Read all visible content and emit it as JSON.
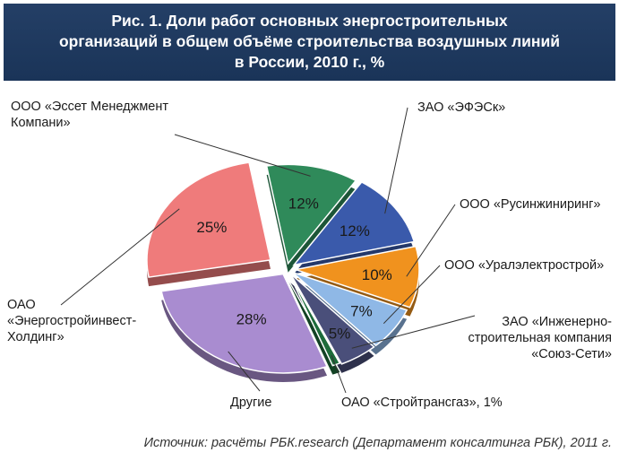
{
  "title_lines": [
    "Рис. 1. Доли работ основных энергостроительных",
    "организаций в общем объёме строительства воздушных линий",
    "в России, 2010 г., %"
  ],
  "source": "Источник: расчёты РБК.research (Департамент консалтинга РБК), 2011 г.",
  "colors": {
    "title_bg": "#243f66",
    "slices": [
      "#2f8a5a",
      "#3a5aab",
      "#f0921e",
      "#8fb8e6",
      "#4a4f7a",
      "#1d6b3a",
      "#a98cd0",
      "#ef7b7b"
    ]
  },
  "chart_data": {
    "type": "pie",
    "title": "Рис. 1. Доли работ основных энергостроительных организаций в общем объёме строительства воздушных линий в России, 2010 г., %",
    "categories": [
      "ООО «Эссет Менеджмент Компани»",
      "ЗАО «ЭФЭСк»",
      "ООО «Русинжиниринг»",
      "ООО «Уралэлектрострой»",
      "ЗАО «Инженерно-строительная компания «Союз-Сети»",
      "ОАО «Стройтрансгаз»",
      "Другие",
      "ОАО «Энергостройинвест-Холдинг»"
    ],
    "values": [
      12,
      12,
      10,
      7,
      5,
      1,
      28,
      25
    ],
    "value_labels": [
      "12%",
      "12%",
      "10%",
      "7%",
      "5%",
      "",
      "28%",
      "25%"
    ]
  },
  "labels": {
    "esset": [
      "ООО «Эссет Менеджмент",
      "Компани»"
    ],
    "efesk": "ЗАО «ЭФЭСк»",
    "rusinzh": "ООО «Русинжиниринг»",
    "ural": "ООО «Уралэлектрострой»",
    "soyuz": [
      "ЗАО «Инженерно-",
      "строительная компания",
      "«Союз-Сети»"
    ],
    "stroytrans": "ОАО «Стройтрансгаз», 1%",
    "drugie": "Другие",
    "energo": [
      "ОАО",
      "«Энергостройинвест-",
      "Холдинг»"
    ]
  }
}
